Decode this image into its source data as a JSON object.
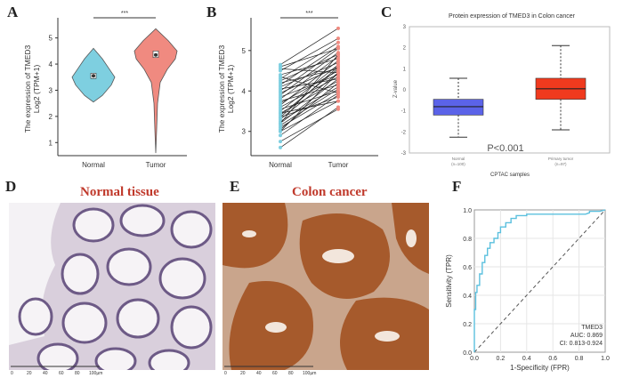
{
  "panels": {
    "A": {
      "letter": "A"
    },
    "B": {
      "letter": "B"
    },
    "C": {
      "letter": "C"
    },
    "D": {
      "letter": "D",
      "title": "Normal tissue",
      "scale_ticks": [
        "0",
        "20",
        "40",
        "60",
        "80",
        "100µm"
      ]
    },
    "E": {
      "letter": "E",
      "title": "Colon cancer",
      "scale_ticks": [
        "0",
        "20",
        "40",
        "60",
        "80",
        "100µm"
      ]
    },
    "F": {
      "letter": "F"
    }
  },
  "colors": {
    "normal": "#7ecfe0",
    "tumor": "#f08a80",
    "box_normal": "#5b63e8",
    "box_tumor": "#f03a1e",
    "roc": "#5bc0de",
    "photo_title": "#c0392b"
  },
  "chart_data": [
    {
      "id": "A",
      "type": "violin",
      "categories": [
        "Normal",
        "Tumor"
      ],
      "ylabel_line1": "The expression of TMED3",
      "ylabel_line2": "Log2 (TPM+1)",
      "yticks": [
        "1",
        "2",
        "3",
        "4",
        "5"
      ],
      "ylim": [
        0.5,
        5.6
      ],
      "significance": "***",
      "series": [
        {
          "name": "Normal",
          "median": 3.55,
          "q1": 3.45,
          "q3": 3.65,
          "min": 2.55,
          "max": 4.6
        },
        {
          "name": "Tumor",
          "median": 4.35,
          "q1": 4.25,
          "q3": 4.5,
          "min": 0.6,
          "max": 5.35
        }
      ]
    },
    {
      "id": "B",
      "type": "paired-line",
      "categories": [
        "Normal",
        "Tumor"
      ],
      "ylabel_line1": "The expression of TMED3",
      "ylabel_line2": "Log2 (TPM+1)",
      "yticks": [
        "3",
        "4",
        "5"
      ],
      "ylim": [
        2.4,
        5.7
      ],
      "significance": "***",
      "pairs": [
        [
          2.6,
          3.6
        ],
        [
          2.75,
          3.55
        ],
        [
          2.9,
          3.9
        ],
        [
          3.0,
          3.75
        ],
        [
          3.05,
          4.2
        ],
        [
          3.1,
          3.95
        ],
        [
          3.15,
          4.05
        ],
        [
          3.2,
          4.3
        ],
        [
          3.25,
          4.1
        ],
        [
          3.3,
          4.45
        ],
        [
          3.35,
          3.85
        ],
        [
          3.4,
          4.55
        ],
        [
          3.45,
          4.25
        ],
        [
          3.5,
          4.65
        ],
        [
          3.55,
          4.0
        ],
        [
          3.6,
          4.35
        ],
        [
          3.65,
          4.75
        ],
        [
          3.7,
          4.5
        ],
        [
          3.75,
          4.15
        ],
        [
          3.8,
          4.85
        ],
        [
          3.85,
          4.4
        ],
        [
          3.9,
          4.95
        ],
        [
          3.95,
          4.6
        ],
        [
          4.0,
          5.05
        ],
        [
          4.05,
          4.3
        ],
        [
          4.1,
          4.7
        ],
        [
          4.15,
          5.1
        ],
        [
          4.2,
          4.55
        ],
        [
          4.25,
          4.9
        ],
        [
          4.3,
          5.2
        ],
        [
          4.35,
          3.95
        ],
        [
          4.4,
          4.8
        ],
        [
          4.5,
          5.3
        ],
        [
          4.55,
          4.45
        ],
        [
          4.6,
          5.05
        ],
        [
          4.65,
          5.55
        ],
        [
          3.45,
          3.75
        ],
        [
          3.35,
          4.6
        ],
        [
          3.2,
          4.9
        ],
        [
          3.0,
          4.45
        ]
      ]
    },
    {
      "id": "C",
      "type": "box",
      "title": "Protein expression of TMED3 in Colon cancer",
      "ylabel": "Z-value",
      "xlabel": "CPTAC samples",
      "yticks": [
        "-3",
        "-2",
        "-1",
        "0",
        "1",
        "2",
        "3"
      ],
      "ylim": [
        -3,
        3
      ],
      "annotation": "P<0.001",
      "categories": [
        "Normal",
        "Primary tumor"
      ],
      "category_counts": [
        "(n=100)",
        "(n=97)"
      ],
      "series": [
        {
          "name": "Normal",
          "min": -2.25,
          "q1": -1.2,
          "median": -0.8,
          "q3": -0.45,
          "max": 0.55
        },
        {
          "name": "Primary tumor",
          "min": -1.9,
          "q1": -0.45,
          "median": 0.05,
          "q3": 0.55,
          "max": 2.1
        }
      ]
    },
    {
      "id": "F",
      "type": "roc",
      "xlabel": "1-Specificity (FPR)",
      "ylabel": "Sensitivity (TPR)",
      "xticks": [
        "0.0",
        "0.2",
        "0.4",
        "0.6",
        "0.8",
        "1.0"
      ],
      "yticks": [
        "0.0",
        "0.2",
        "0.4",
        "0.6",
        "0.8",
        "1.0"
      ],
      "xlim": [
        0,
        1
      ],
      "ylim": [
        0,
        1
      ],
      "legend": [
        "TMED3",
        "AUC: 0.869",
        "CI: 0.813-0.924"
      ],
      "x": [
        0,
        0,
        0.01,
        0.01,
        0.02,
        0.02,
        0.04,
        0.04,
        0.06,
        0.06,
        0.08,
        0.08,
        0.1,
        0.1,
        0.12,
        0.12,
        0.15,
        0.15,
        0.18,
        0.18,
        0.2,
        0.2,
        0.24,
        0.24,
        0.28,
        0.28,
        0.32,
        0.32,
        0.4,
        0.4,
        0.55,
        0.7,
        0.85,
        0.88,
        0.88,
        0.93,
        0.96,
        1.0
      ],
      "y": [
        0,
        0.3,
        0.3,
        0.42,
        0.42,
        0.47,
        0.47,
        0.55,
        0.55,
        0.63,
        0.63,
        0.68,
        0.68,
        0.73,
        0.73,
        0.77,
        0.77,
        0.8,
        0.8,
        0.84,
        0.84,
        0.88,
        0.88,
        0.91,
        0.91,
        0.94,
        0.94,
        0.96,
        0.96,
        0.97,
        0.97,
        0.97,
        0.97,
        0.98,
        0.99,
        0.99,
        0.99,
        1.0
      ]
    }
  ]
}
